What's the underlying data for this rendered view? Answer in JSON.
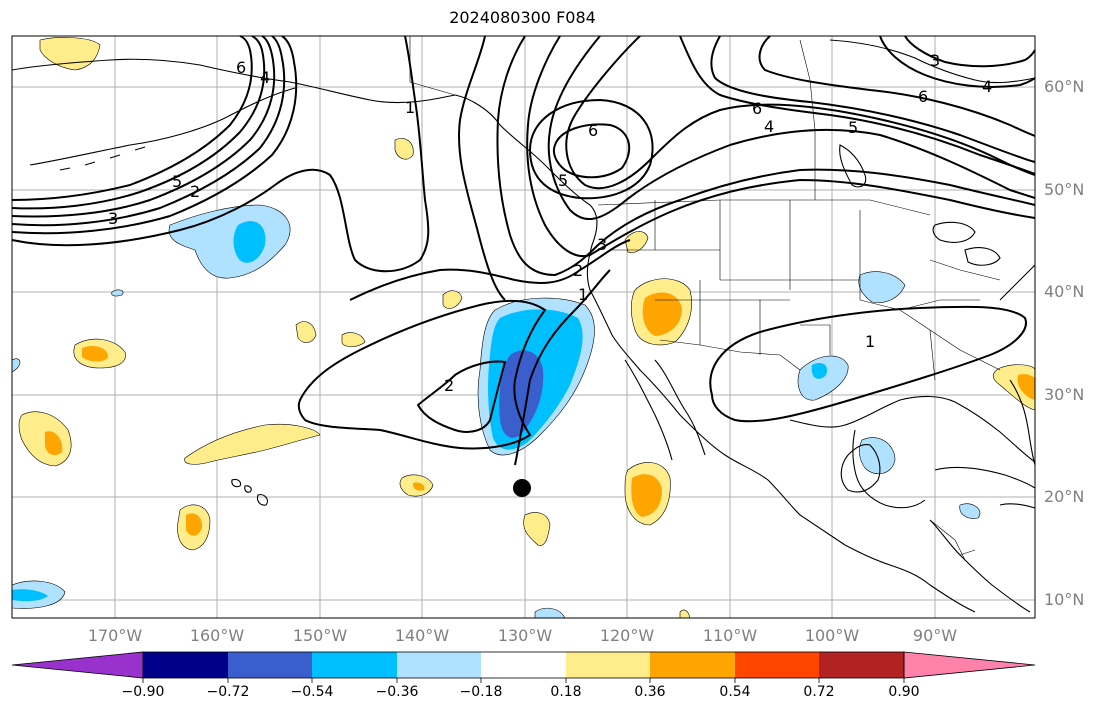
{
  "title": "2024080300 F084",
  "map": {
    "lat_labels": [
      "60°N",
      "50°N",
      "40°N",
      "30°N",
      "20°N",
      "10°N"
    ],
    "lon_labels": [
      "170°W",
      "160°W",
      "150°W",
      "140°W",
      "130°W",
      "120°W",
      "110°W",
      "100°W",
      "90°W"
    ],
    "contour_labels": [
      "6",
      "4",
      "5",
      "2",
      "3",
      "1",
      "6",
      "6",
      "4",
      "5",
      "5",
      "3",
      "2",
      "1",
      "2",
      "1",
      "3",
      "4",
      "6"
    ]
  },
  "colorbar": {
    "tick_labels": [
      "−0.90",
      "−0.72",
      "−0.54",
      "−0.36",
      "−0.18",
      "0.18",
      "0.36",
      "0.54",
      "0.72",
      "0.90"
    ],
    "colors": [
      "#9932cc",
      "#00008b",
      "#3a5fcd",
      "#00bfff",
      "#b0e2ff",
      "#ffffff",
      "#ffec8b",
      "#ffa500",
      "#ff4500",
      "#b22222",
      "#ff82ab"
    ]
  },
  "colors": {
    "grid": "#b0b0b0",
    "coast": "#000000",
    "contour": "#000000"
  }
}
